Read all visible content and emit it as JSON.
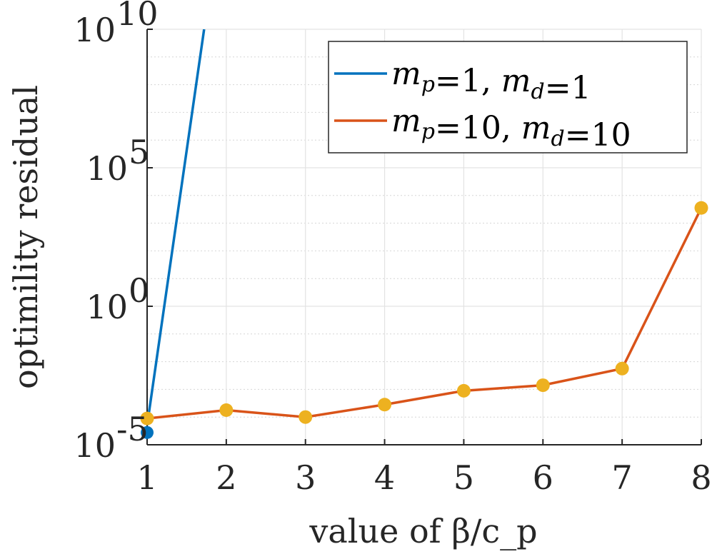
{
  "chart_data": {
    "type": "line",
    "title": "",
    "xlabel": "value of β/c_p",
    "ylabel": "optimility residual",
    "y_scale": "log10",
    "xlim": [
      1,
      8
    ],
    "ylim_exponent": [
      -5,
      10
    ],
    "x_ticks": [
      1,
      2,
      3,
      4,
      5,
      6,
      7,
      8
    ],
    "y_ticks": [
      {
        "exponent": -5,
        "base": "10",
        "sup": "-5"
      },
      {
        "exponent": 0,
        "base": "10",
        "sup": "0"
      },
      {
        "exponent": 5,
        "base": "10",
        "sup": "5"
      },
      {
        "exponent": 10,
        "base": "10",
        "sup": "10"
      }
    ],
    "grid": true,
    "legend_position": "top-right",
    "series": [
      {
        "name": "m_p=1, m_d=1",
        "legend": {
          "var1": "m",
          "sub1": "p",
          "eq1": "=1, ",
          "var2": "m",
          "sub2": "d",
          "eq2": "=1"
        },
        "color": "#0072BD",
        "x": [
          1,
          1.72
        ],
        "y_log10": [
          -4.3,
          10
        ],
        "markers": [
          {
            "x": 1,
            "y_log10": -4.3
          }
        ]
      },
      {
        "name": "m_p=10, m_d=10",
        "legend": {
          "var1": "m",
          "sub1": "p",
          "eq1": "=10, ",
          "var2": "m",
          "sub2": "d",
          "eq2": "=10"
        },
        "color": "#D95319",
        "marker_color": "#EDB120",
        "x": [
          1,
          2,
          3,
          4,
          5,
          6,
          7,
          8
        ],
        "y_log10": [
          -4.05,
          -3.75,
          -4.0,
          -3.55,
          -3.05,
          -2.85,
          -2.25,
          3.55
        ]
      }
    ]
  }
}
